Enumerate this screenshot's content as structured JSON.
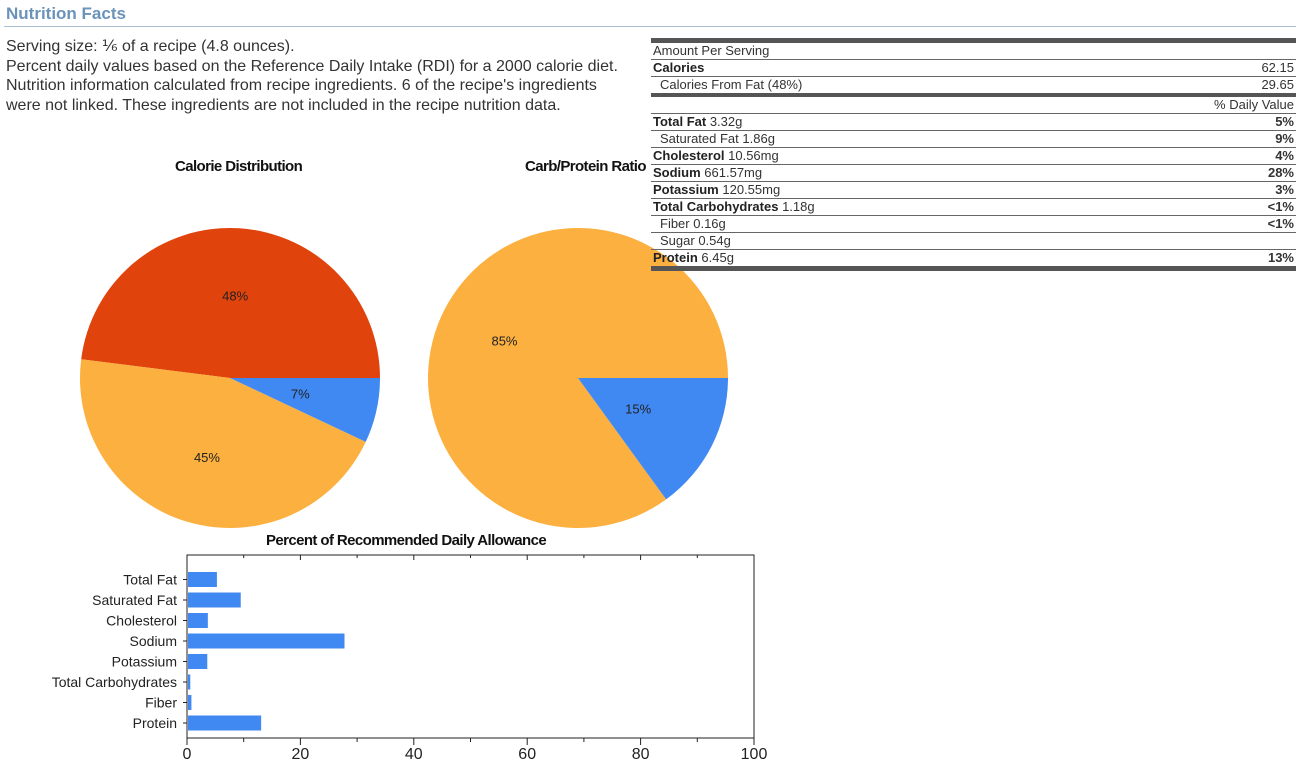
{
  "page": {
    "title": "Nutrition Facts",
    "serving": "Serving size: ⅙ of a recipe (4.8 ounces).",
    "rdi": "Percent daily values based on the Reference Daily Intake (RDI) for a 2000 calorie diet.",
    "note": "Nutrition information calculated from recipe ingredients. 6 of the recipe's ingredients were not linked. These ingredients are not included in the recipe nutrition data."
  },
  "colors": {
    "fat": "#e0430c",
    "carbs": "#fbb03f",
    "protein": "#4189f2",
    "bar": "#4189f2",
    "title": "#6b93ba"
  },
  "chart_data": [
    {
      "type": "pie",
      "title": "Calorie Distribution",
      "slices": [
        {
          "label": "48%",
          "value": 48
        },
        {
          "label": "45%",
          "value": 45
        },
        {
          "label": "7%",
          "value": 7
        }
      ]
    },
    {
      "type": "pie",
      "title": "Carb/Protein Ratio",
      "slices": [
        {
          "label": "85%",
          "value": 85
        },
        {
          "label": "15%",
          "value": 15
        }
      ]
    },
    {
      "type": "bar",
      "orientation": "horizontal",
      "title": "Percent of Recommended Daily Allowance",
      "categories": [
        "Total Fat",
        "Saturated Fat",
        "Cholesterol",
        "Sodium",
        "Potassium",
        "Total Carbohydrates",
        "Fiber",
        "Protein"
      ],
      "values": [
        5.1,
        9.3,
        3.5,
        27.6,
        3.4,
        0.4,
        0.6,
        12.9
      ],
      "xlim": [
        0,
        100
      ],
      "xticks": [
        "0",
        "20",
        "40",
        "60",
        "80",
        "100"
      ]
    }
  ],
  "nutrition": {
    "header": "Amount Per Serving",
    "calories_label": "Calories",
    "calories_value": "62.15",
    "fat_cal_label": "Calories From Fat (48%)",
    "fat_cal_value": "29.65",
    "dv_header": "% Daily Value",
    "rows": [
      {
        "name": "Total Fat",
        "amount": "3.32g",
        "dv": "5%",
        "bold": true
      },
      {
        "name": "Saturated Fat",
        "amount": "1.86g",
        "dv": "9%",
        "bold": false
      },
      {
        "name": "Cholesterol",
        "amount": "10.56mg",
        "dv": "4%",
        "bold": true
      },
      {
        "name": "Sodium",
        "amount": "661.57mg",
        "dv": "28%",
        "bold": true
      },
      {
        "name": "Potassium",
        "amount": "120.55mg",
        "dv": "3%",
        "bold": true
      },
      {
        "name": "Total Carbohydrates",
        "amount": "1.18g",
        "dv": "<1%",
        "bold": true
      },
      {
        "name": "Fiber",
        "amount": "0.16g",
        "dv": "<1%",
        "bold": false
      },
      {
        "name": "Sugar",
        "amount": "0.54g",
        "dv": "",
        "bold": false
      },
      {
        "name": "Protein",
        "amount": "6.45g",
        "dv": "13%",
        "bold": true
      }
    ]
  }
}
